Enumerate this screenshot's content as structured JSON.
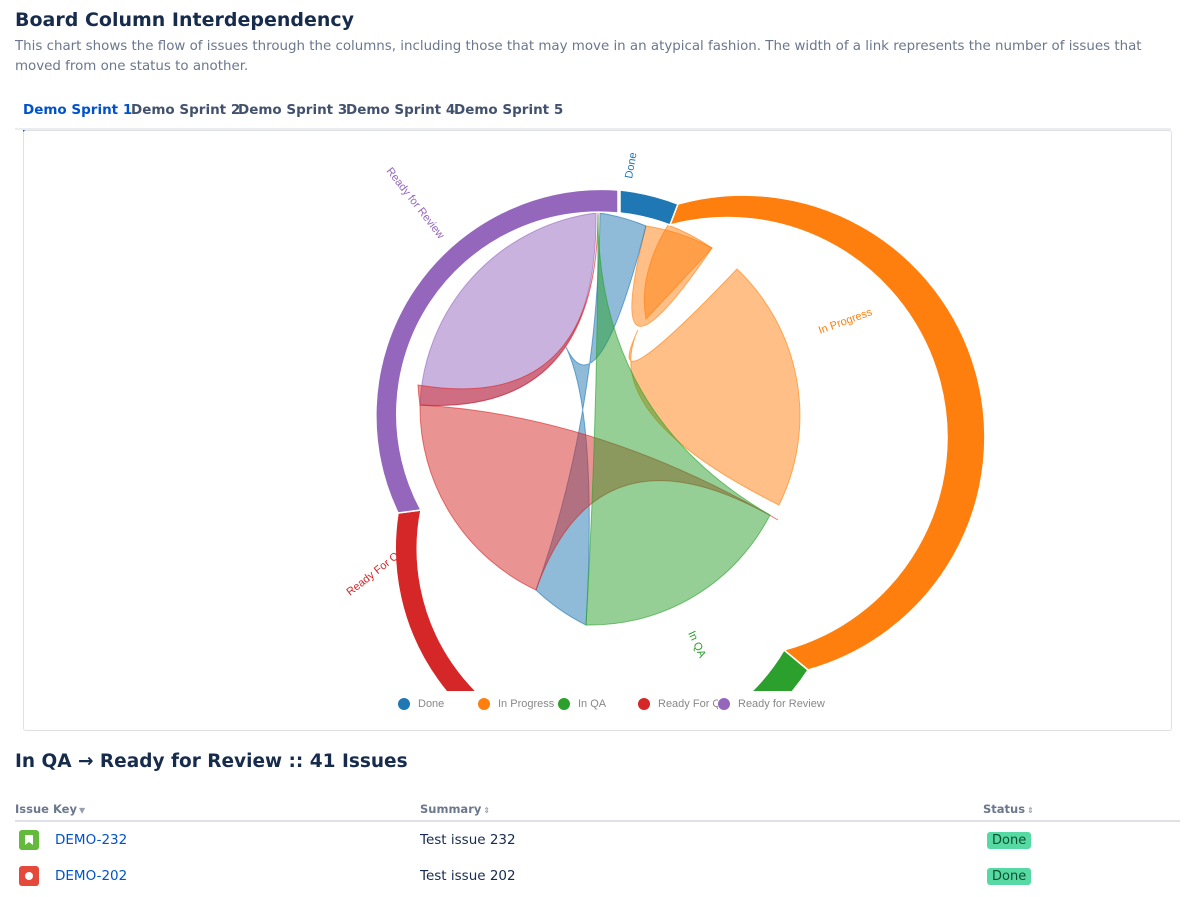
{
  "header": {
    "title": "Board Column Interdependency",
    "description": "This chart shows the flow of issues through the columns, including those that may move in an atypical fashion. The width of a link represents the number of issues that moved from one status to another."
  },
  "tabs": [
    {
      "label": "Demo Sprint 1",
      "active": true
    },
    {
      "label": "Demo Sprint 2",
      "active": false
    },
    {
      "label": "Demo Sprint 3",
      "active": false
    },
    {
      "label": "Demo Sprint 4",
      "active": false
    },
    {
      "label": "Demo Sprint 5",
      "active": false
    }
  ],
  "chart_data": {
    "type": "chord",
    "groups": [
      {
        "name": "Done",
        "color": "#1f77b4"
      },
      {
        "name": "In Progress",
        "color": "#ff7f0e"
      },
      {
        "name": "In QA",
        "color": "#2ca02c"
      },
      {
        "name": "Ready For QA",
        "color": "#d62728"
      },
      {
        "name": "Ready for Review",
        "color": "#9467bd"
      }
    ],
    "legend": {
      "position": "bottom"
    }
  },
  "legend_labels": [
    "Done",
    "In Progress",
    "In QA",
    "Ready For QA",
    "Ready for Review"
  ],
  "selection": {
    "title": "In QA → Ready for Review :: 41 Issues"
  },
  "table": {
    "columns": [
      "Issue Key",
      "Summary",
      "Status"
    ],
    "rows": [
      {
        "key": "DEMO-232",
        "summary": "Test issue 232",
        "status": "Done",
        "type_icon": "story-icon",
        "icon_color": "#63ba3c"
      },
      {
        "key": "DEMO-202",
        "summary": "Test issue 202",
        "status": "Done",
        "type_icon": "bug-icon",
        "icon_color": "#e5493a"
      }
    ]
  }
}
